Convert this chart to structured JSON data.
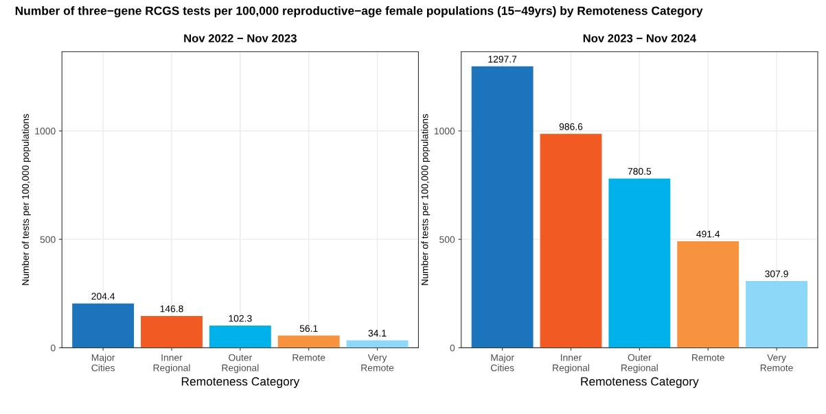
{
  "chart_data": [
    {
      "type": "bar",
      "title": "Number of three−gene RCGS tests per 100,000 reproductive−age female populations (15−49yrs) by Remoteness Category",
      "subtitle": "Nov 2022 − Nov 2023",
      "xlabel": "Remoteness Category",
      "ylabel": "Number of tests per 100,000 populations",
      "categories": [
        "Major\nCities",
        "Inner\nRegional",
        "Outer\nRegional",
        "Remote",
        "Very\nRemote"
      ],
      "values": [
        204.4,
        146.8,
        102.3,
        56.1,
        34.1
      ],
      "colors": [
        "#1c75bc",
        "#f15a22",
        "#00b1ea",
        "#f7923f",
        "#8dd8f8"
      ],
      "ylim": [
        0,
        1365
      ],
      "yticks": [
        0,
        500,
        1000
      ],
      "grid": true,
      "data_labels": true
    },
    {
      "type": "bar",
      "subtitle": "Nov 2023 − Nov 2024",
      "xlabel": "Remoteness Category",
      "ylabel": "Number of tests per 100,000 populations",
      "categories": [
        "Major\nCities",
        "Inner\nRegional",
        "Outer\nRegional",
        "Remote",
        "Very\nRemote"
      ],
      "values": [
        1297.7,
        986.6,
        780.5,
        491.4,
        307.9
      ],
      "colors": [
        "#1c75bc",
        "#f15a22",
        "#00b1ea",
        "#f7923f",
        "#8dd8f8"
      ],
      "ylim": [
        0,
        1365
      ],
      "yticks": [
        0,
        500,
        1000
      ],
      "grid": true,
      "data_labels": true
    }
  ]
}
